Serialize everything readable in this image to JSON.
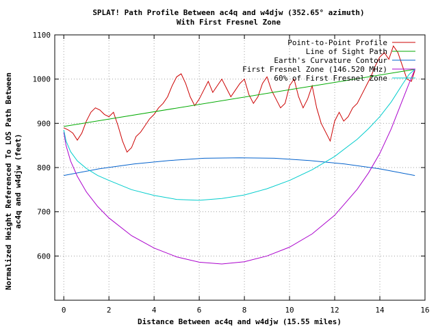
{
  "chart_data": {
    "type": "line",
    "title": "SPLAT! Path Profile Between ac4q and w4djw (352.65° azimuth)",
    "subtitle": "With First Fresnel Zone",
    "xlabel": "Distance Between ac4q and w4djw (15.55 miles)",
    "ylabel_line1": "Normalized Height Referenced To LOS Path Between",
    "ylabel_line2": "ac4q and w4djw (feet)",
    "xlim": [
      -0.4,
      16
    ],
    "ylim": [
      500,
      1100
    ],
    "grid": true,
    "legend_position": "top-right",
    "x_ticks": [
      0,
      2,
      4,
      6,
      8,
      10,
      12,
      14,
      16
    ],
    "x_tick_labels": [
      "0",
      "2",
      "4",
      "6",
      "8",
      "10",
      "12",
      "14",
      "16"
    ],
    "y_ticks": [
      600,
      700,
      800,
      900,
      1000,
      1100
    ],
    "y_tick_labels": [
      "600",
      "700",
      "800",
      "900",
      "1000",
      "1100"
    ],
    "series": [
      {
        "name": "Point-to-Point Profile",
        "color": "#cc0000",
        "x": [
          0,
          0.2,
          0.4,
          0.6,
          0.8,
          1.0,
          1.2,
          1.4,
          1.6,
          1.8,
          2.0,
          2.2,
          2.4,
          2.6,
          2.8,
          3.0,
          3.2,
          3.4,
          3.6,
          3.8,
          4.0,
          4.2,
          4.4,
          4.6,
          4.8,
          5.0,
          5.2,
          5.4,
          5.6,
          5.8,
          6.0,
          6.2,
          6.4,
          6.6,
          6.8,
          7.0,
          7.2,
          7.4,
          7.6,
          7.8,
          8.0,
          8.2,
          8.4,
          8.6,
          8.8,
          9.0,
          9.2,
          9.4,
          9.6,
          9.8,
          10.0,
          10.2,
          10.4,
          10.6,
          10.8,
          11.0,
          11.2,
          11.4,
          11.6,
          11.8,
          12.0,
          12.2,
          12.4,
          12.6,
          12.8,
          13.0,
          13.2,
          13.4,
          13.6,
          13.8,
          14.0,
          14.2,
          14.4,
          14.6,
          14.8,
          15.0,
          15.2,
          15.4,
          15.55
        ],
        "values": [
          890,
          885,
          878,
          862,
          878,
          905,
          925,
          935,
          930,
          920,
          915,
          925,
          895,
          860,
          835,
          845,
          870,
          880,
          895,
          910,
          920,
          935,
          945,
          960,
          985,
          1005,
          1012,
          990,
          960,
          940,
          955,
          975,
          995,
          970,
          985,
          1000,
          980,
          960,
          975,
          990,
          1000,
          965,
          945,
          960,
          990,
          1005,
          975,
          955,
          935,
          945,
          985,
          1000,
          960,
          935,
          955,
          985,
          935,
          900,
          880,
          860,
          905,
          925,
          905,
          915,
          935,
          945,
          965,
          985,
          1005,
          1030,
          1050,
          1060,
          1045,
          1075,
          1060,
          1030,
          1000,
          995,
          1020
        ]
      },
      {
        "name": "Line of Sight Path",
        "color": "#00aa00",
        "x": [
          0,
          15.55
        ],
        "values": [
          893,
          1022
        ]
      },
      {
        "name": "Earth's Curvature Contour",
        "color": "#0060cc",
        "x": [
          0,
          1.555,
          3.11,
          4.665,
          6.22,
          7.775,
          9.33,
          10.885,
          12.44,
          13.995,
          15.55
        ],
        "values": [
          782,
          797,
          808,
          816,
          821,
          822,
          821,
          816,
          808,
          797,
          782
        ]
      },
      {
        "name": "First Fresnel Zone (146.520 MHz)",
        "color": "#aa00cc",
        "x": [
          0,
          0.1,
          0.3,
          0.6,
          1.0,
          1.5,
          2.0,
          3.0,
          4.0,
          5.0,
          6.0,
          7.0,
          8.0,
          9.0,
          10.0,
          11.0,
          12.0,
          13.0,
          13.5,
          14.0,
          14.5,
          15.0,
          15.3,
          15.55
        ],
        "values": [
          880,
          850,
          815,
          780,
          745,
          712,
          686,
          646,
          618,
          598,
          586,
          582,
          587,
          600,
          620,
          650,
          692,
          751,
          788,
          832,
          887,
          952,
          991,
          1022
        ]
      },
      {
        "name": "60% of First Fresnel Zone",
        "color": "#00cccc",
        "x": [
          0,
          0.1,
          0.3,
          0.6,
          1.0,
          1.5,
          2.0,
          3.0,
          4.0,
          5.0,
          6.0,
          7.0,
          8.0,
          9.0,
          10.0,
          11.0,
          12.0,
          13.0,
          13.5,
          14.0,
          14.5,
          15.0,
          15.3,
          15.55
        ],
        "values": [
          885,
          860,
          836,
          815,
          798,
          782,
          771,
          750,
          737,
          728,
          726,
          730,
          738,
          752,
          771,
          795,
          825,
          864,
          888,
          915,
          948,
          988,
          1011,
          1022
        ]
      }
    ]
  }
}
